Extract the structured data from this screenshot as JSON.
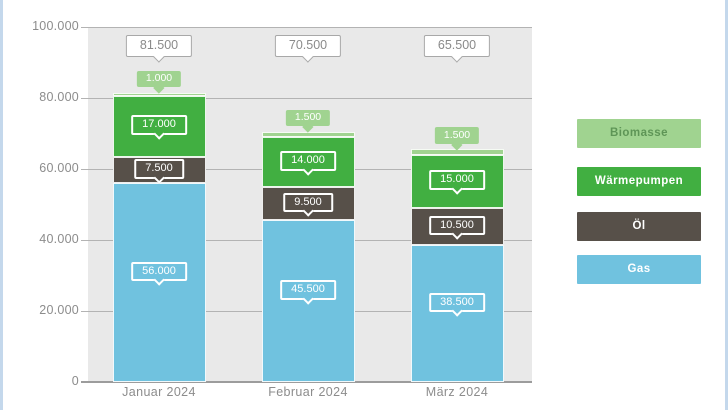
{
  "page": {
    "background": "#ffffff",
    "edge_border_color": "#c4d8ec"
  },
  "chart_data": {
    "type": "bar",
    "stacked": true,
    "plot_background": "#e9e9e9",
    "grid": true,
    "y_axis": {
      "min": 0,
      "max": 100000,
      "tick_interval": 20000,
      "ticks": [
        {
          "value": 0,
          "label": "0"
        },
        {
          "value": 20000,
          "label": "20.000"
        },
        {
          "value": 40000,
          "label": "40.000"
        },
        {
          "value": 60000,
          "label": "60.000"
        },
        {
          "value": 80000,
          "label": "80.000"
        },
        {
          "value": 100000,
          "label": "100.000"
        }
      ]
    },
    "categories": [
      {
        "label": "Januar 2024",
        "total": 81500,
        "total_label": "81.500"
      },
      {
        "label": "Februar 2024",
        "total": 70500,
        "total_label": "70.500"
      },
      {
        "label": "März 2024",
        "total": 65500,
        "total_label": "65.500"
      }
    ],
    "series": [
      {
        "name": "Gas",
        "color": "#70c2df",
        "values": [
          56000,
          45500,
          38500
        ],
        "labels": [
          "56.000",
          "45.500",
          "38.500"
        ],
        "label_style": "inside"
      },
      {
        "name": "Öl",
        "color": "#575049",
        "values": [
          7500,
          9500,
          10500
        ],
        "labels": [
          "7.500",
          "9.500",
          "10.500"
        ],
        "label_style": "inside"
      },
      {
        "name": "Wärmepumpen",
        "color": "#41af41",
        "values": [
          17000,
          14000,
          15000
        ],
        "labels": [
          "17.000",
          "14.000",
          "15.000"
        ],
        "label_style": "inside"
      },
      {
        "name": "Biomasse",
        "color": "#a0d390",
        "values": [
          1000,
          1500,
          1500
        ],
        "labels": [
          "1.000",
          "1.500",
          "1.500"
        ],
        "label_style": "above"
      }
    ],
    "legend": {
      "position": "right",
      "items": [
        {
          "label": "Biomasse",
          "bg": "#a0d390",
          "text_color": "#5e9556"
        },
        {
          "label": "Wärmepumpen",
          "bg": "#41af41",
          "text_color": "#ffffff"
        },
        {
          "label": "Öl",
          "bg": "#575049",
          "text_color": "#ffffff"
        },
        {
          "label": "Gas",
          "bg": "#70c2df",
          "text_color": "#ffffff"
        }
      ]
    }
  }
}
